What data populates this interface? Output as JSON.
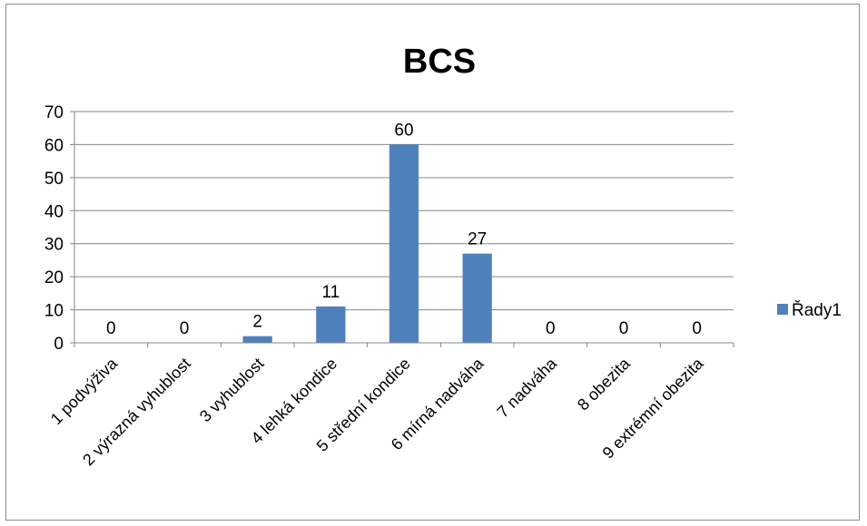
{
  "chart_data": {
    "type": "bar",
    "title": "BCS",
    "categories": [
      "1 podvýživa",
      "2 výrazná vyhublost",
      "3 vyhublost",
      "4 lehká kondice",
      "5 střední kondice",
      "6 mírná nadváha",
      "7 nadváha",
      "8 obezita",
      "9 extrémní obezita"
    ],
    "series": [
      {
        "name": "Řady1",
        "values": [
          0,
          0,
          2,
          11,
          60,
          27,
          0,
          0,
          0
        ],
        "color": "#4f81bd"
      }
    ],
    "ylim": [
      0,
      70
    ],
    "yticks": [
      0,
      10,
      20,
      30,
      40,
      50,
      60,
      70
    ],
    "grid": true,
    "legend": "right",
    "data_labels": true,
    "xlabel": "",
    "ylabel": ""
  }
}
